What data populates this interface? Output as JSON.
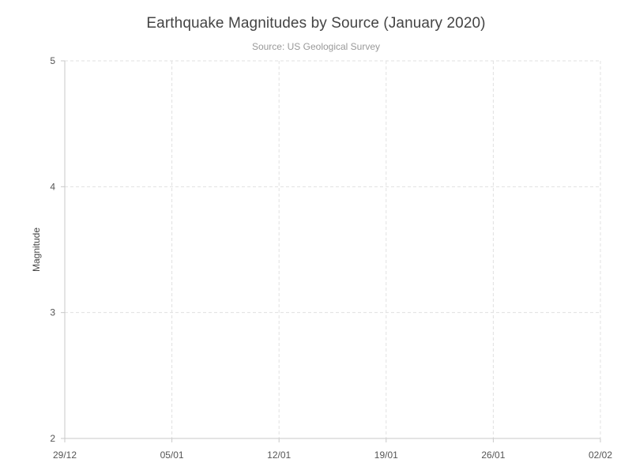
{
  "chart_data": {
    "type": "scatter",
    "title": "Earthquake Magnitudes by Source (January 2020)",
    "subtitle": "Source: US Geological Survey",
    "xlabel": "",
    "ylabel": "Magnitude",
    "x_ticks": [
      "29/12",
      "05/01",
      "12/01",
      "19/01",
      "26/01",
      "02/02"
    ],
    "x_tick_dates": [
      "2019-12-29",
      "2020-01-05",
      "2020-01-12",
      "2020-01-19",
      "2020-01-26",
      "2020-02-02"
    ],
    "xlim": [
      "2019-12-29",
      "2020-02-02"
    ],
    "y_ticks": [
      "2",
      "3",
      "4",
      "5"
    ],
    "ylim": [
      2,
      5
    ],
    "grid": true,
    "series": []
  },
  "colors": {
    "grid": "#e0e0e0",
    "axis": "#c8c8c8",
    "text": "#444444",
    "subtitle": "#999999"
  }
}
